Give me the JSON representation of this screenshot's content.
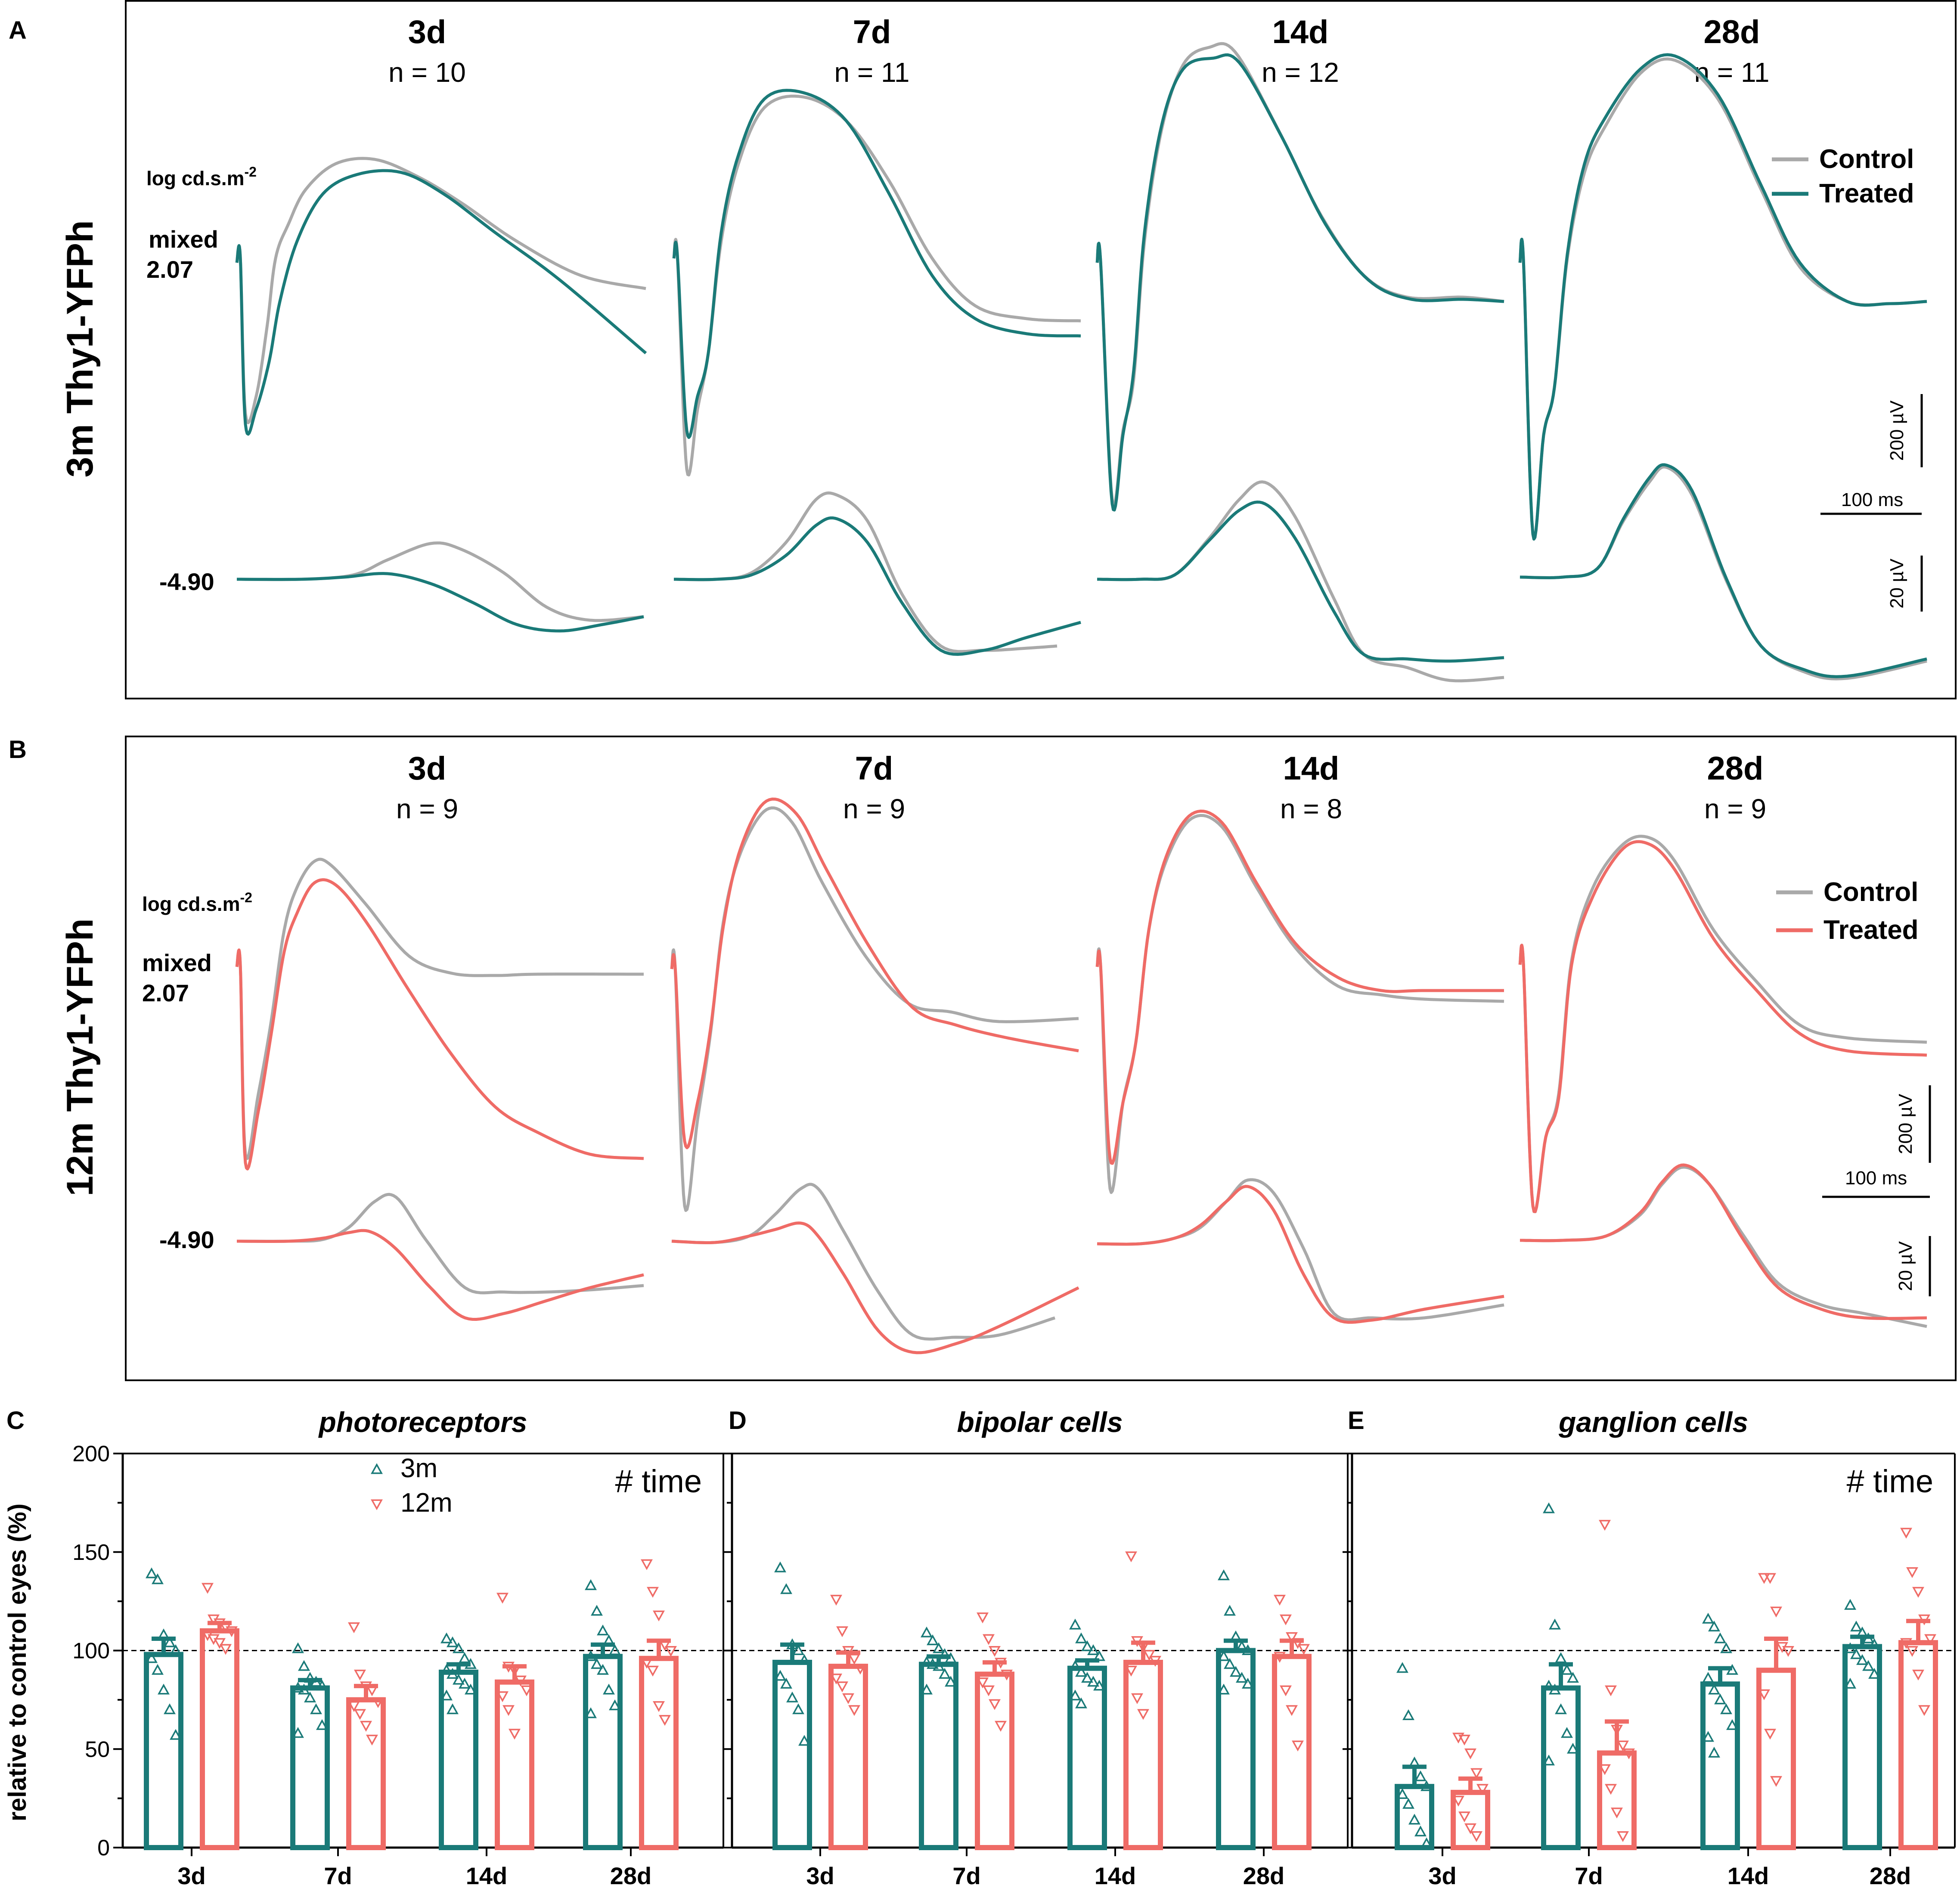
{
  "colors": {
    "control": "#a9a9a9",
    "treated_3m": "#1a7a78",
    "treated_12m": "#ef6b66"
  },
  "panels": {
    "A": {
      "label": "A",
      "row_title": "3m Thy1-YFPh",
      "timepoints": [
        {
          "title": "3d",
          "n": "n = 10"
        },
        {
          "title": "7d",
          "n": "n = 11"
        },
        {
          "title": "14d",
          "n": "n = 12"
        },
        {
          "title": "28d",
          "n": "n = 11"
        }
      ],
      "intensity_unit": "log cd.s.m",
      "intensity_exp": "-2",
      "mixed_label": "mixed",
      "mixed_value": "2.07",
      "dim_value": "-4.90",
      "legend": {
        "control": "Control",
        "treated": "Treated"
      },
      "scalebars": {
        "large": "200 µV",
        "time": "100 ms",
        "small": "20 µV"
      }
    },
    "B": {
      "label": "B",
      "row_title": "12m Thy1-YFPh",
      "timepoints": [
        {
          "title": "3d",
          "n": "n = 9"
        },
        {
          "title": "7d",
          "n": "n = 9"
        },
        {
          "title": "14d",
          "n": "n = 8"
        },
        {
          "title": "28d",
          "n": "n = 9"
        }
      ],
      "intensity_unit": "log cd.s.m",
      "intensity_exp": "-2",
      "mixed_label": "mixed",
      "mixed_value": "2.07",
      "dim_value": "-4.90",
      "legend": {
        "control": "Control",
        "treated": "Treated"
      },
      "scalebars": {
        "large": "200 µV",
        "time": "100 ms",
        "small": "20 µV"
      }
    }
  },
  "chart_data": [
    {
      "panel": "C",
      "type": "bar",
      "title": "photoreceptors",
      "ylabel": "relative to control eyes (%)",
      "ylim": [
        0,
        200
      ],
      "yticks": [
        "0",
        "50",
        "100",
        "150",
        "200"
      ],
      "reference_line": 100,
      "categories": [
        "3d",
        "7d",
        "14d",
        "28d"
      ],
      "annotation": "# time",
      "legend": [
        "3m",
        "12m"
      ],
      "series": [
        {
          "name": "3m",
          "values": [
            98,
            81,
            89,
            97
          ],
          "sem": [
            8,
            4,
            4,
            6
          ],
          "points": [
            [
              139,
              136,
              108,
              104,
              100,
              96,
              90,
              80,
              70,
              57
            ],
            [
              101,
              92,
              86,
              84,
              82,
              81,
              80,
              76,
              70,
              62,
              58
            ],
            [
              106,
              104,
              101,
              96,
              93,
              90,
              88,
              85,
              83,
              80,
              77,
              70
            ],
            [
              133,
              120,
              110,
              105,
              100,
              97,
              93,
              90,
              80,
              72,
              68
            ]
          ]
        },
        {
          "name": "12m",
          "values": [
            110,
            75,
            84,
            96
          ],
          "sem": [
            4,
            7,
            8,
            9
          ],
          "points": [
            [
              132,
              116,
              114,
              112,
              110,
              108,
              106,
              104,
              101
            ],
            [
              112,
              88,
              82,
              80,
              74,
              72,
              68,
              62,
              55
            ],
            [
              127,
              92,
              90,
              85,
              80,
              77,
              70,
              58
            ],
            [
              144,
              130,
              118,
              103,
              100,
              94,
              90,
              72,
              65
            ]
          ]
        }
      ]
    },
    {
      "panel": "D",
      "type": "bar",
      "title": "bipolar cells",
      "ylim": [
        0,
        200
      ],
      "reference_line": 100,
      "categories": [
        "3d",
        "7d",
        "14d",
        "28d"
      ],
      "series": [
        {
          "name": "3m",
          "values": [
            94,
            93,
            91,
            100
          ],
          "sem": [
            9,
            4,
            4,
            5
          ],
          "points": [
            [
              142,
              131,
              103,
              100,
              95,
              87,
              83,
              76,
              70,
              54
            ],
            [
              109,
              105,
              101,
              98,
              96,
              94,
              93,
              92,
              88,
              84,
              80
            ],
            [
              113,
              106,
              102,
              100,
              97,
              92,
              89,
              86,
              84,
              82,
              77,
              73
            ],
            [
              138,
              120,
              107,
              102,
              100,
              97,
              93,
              89,
              86,
              83,
              80
            ]
          ]
        },
        {
          "name": "12m",
          "values": [
            92,
            88,
            94,
            97
          ],
          "sem": [
            7,
            6,
            10,
            8
          ],
          "points": [
            [
              126,
              110,
              100,
              96,
              91,
              86,
              82,
              76,
              70
            ],
            [
              117,
              106,
              100,
              94,
              88,
              84,
              80,
              73,
              62
            ],
            [
              148,
              105,
              102,
              98,
              95,
              90,
              76,
              68
            ],
            [
              126,
              116,
              107,
              104,
              101,
              97,
              80,
              70,
              52
            ]
          ]
        }
      ]
    },
    {
      "panel": "E",
      "type": "bar",
      "title": "ganglion cells",
      "ylim": [
        0,
        200
      ],
      "reference_line": 100,
      "categories": [
        "3d",
        "7d",
        "14d",
        "28d"
      ],
      "annotation": "# time",
      "series": [
        {
          "name": "3m",
          "values": [
            31,
            81,
            83,
            102
          ],
          "sem": [
            10,
            12,
            8,
            5
          ],
          "points": [
            [
              91,
              67,
              43,
              36,
              31,
              27,
              22,
              14,
              8,
              2
            ],
            [
              172,
              113,
              96,
              90,
              86,
              82,
              80,
              70,
              58,
              50,
              44
            ],
            [
              116,
              112,
              106,
              101,
              90,
              86,
              80,
              75,
              70,
              62,
              56,
              48
            ],
            [
              123,
              112,
              109,
              106,
              103,
              101,
              98,
              95,
              92,
              88,
              83
            ]
          ]
        },
        {
          "name": "12m",
          "values": [
            28,
            48,
            90,
            104
          ],
          "sem": [
            7,
            16,
            16,
            11
          ],
          "points": [
            [
              56,
              55,
              48,
              38,
              30,
              24,
              16,
              10,
              6
            ],
            [
              164,
              80,
              60,
              52,
              48,
              40,
              30,
              18,
              6
            ],
            [
              137,
              137,
              120,
              102,
              100,
              78,
              58,
              34
            ],
            [
              160,
              140,
              130,
              116,
              106,
              104,
              100,
              88,
              70
            ]
          ]
        }
      ]
    }
  ]
}
